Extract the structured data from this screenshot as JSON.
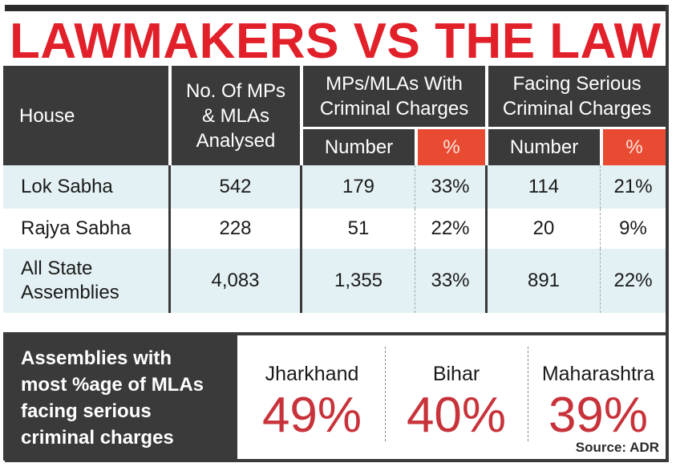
{
  "title": "LAWMAKERS VS THE LAW",
  "table": {
    "headers": {
      "house": "House",
      "analysed": [
        "No. Of MPs",
        "& MLAs",
        "Analysed"
      ],
      "criminal": [
        "MPs/MLAs With",
        "Criminal Charges"
      ],
      "serious": [
        "Facing Serious",
        "Criminal Charges"
      ],
      "number": "Number",
      "percent": "%"
    },
    "rows": [
      {
        "house": [
          "Lok Sabha"
        ],
        "analysed": "542",
        "crim_num": "179",
        "crim_pct": "33%",
        "ser_num": "114",
        "ser_pct": "21%"
      },
      {
        "house": [
          "Rajya Sabha"
        ],
        "analysed": "228",
        "crim_num": "51",
        "crim_pct": "22%",
        "ser_num": "20",
        "ser_pct": "9%"
      },
      {
        "house": [
          "All State",
          "Assemblies"
        ],
        "analysed": "4,083",
        "crim_num": "1,355",
        "crim_pct": "33%",
        "ser_num": "891",
        "ser_pct": "22%"
      }
    ]
  },
  "bottom": {
    "label": [
      "Assemblies with",
      "most %age of MLAs",
      "facing serious",
      "criminal charges"
    ],
    "states": [
      {
        "name": "Jharkhand",
        "pct": "49%"
      },
      {
        "name": "Bihar",
        "pct": "40%"
      },
      {
        "name": "Maharashtra",
        "pct": "39%"
      }
    ],
    "source": "Source: ADR"
  },
  "colors": {
    "headline": "#e2202a",
    "header_bg": "#3a3a3a",
    "percent_header_bg": "#e84a32",
    "row_tint": "#e4f1f4",
    "big_pct": "#c8323a"
  },
  "chart_data": {
    "type": "table",
    "title": "LAWMAKERS VS THE LAW",
    "columns": [
      "House",
      "No. Of MPs & MLAs Analysed",
      "MPs/MLAs With Criminal Charges: Number",
      "MPs/MLAs With Criminal Charges: %",
      "Facing Serious Criminal Charges: Number",
      "Facing Serious Criminal Charges: %"
    ],
    "rows": [
      [
        "Lok Sabha",
        542,
        179,
        33,
        114,
        21
      ],
      [
        "Rajya Sabha",
        228,
        51,
        22,
        20,
        9
      ],
      [
        "All State Assemblies",
        4083,
        1355,
        33,
        891,
        22
      ]
    ],
    "highlights": {
      "label": "Assemblies with most %age of MLAs facing serious criminal charges",
      "categories": [
        "Jharkhand",
        "Bihar",
        "Maharashtra"
      ],
      "values": [
        49,
        40,
        39
      ]
    },
    "source": "Source: ADR"
  }
}
